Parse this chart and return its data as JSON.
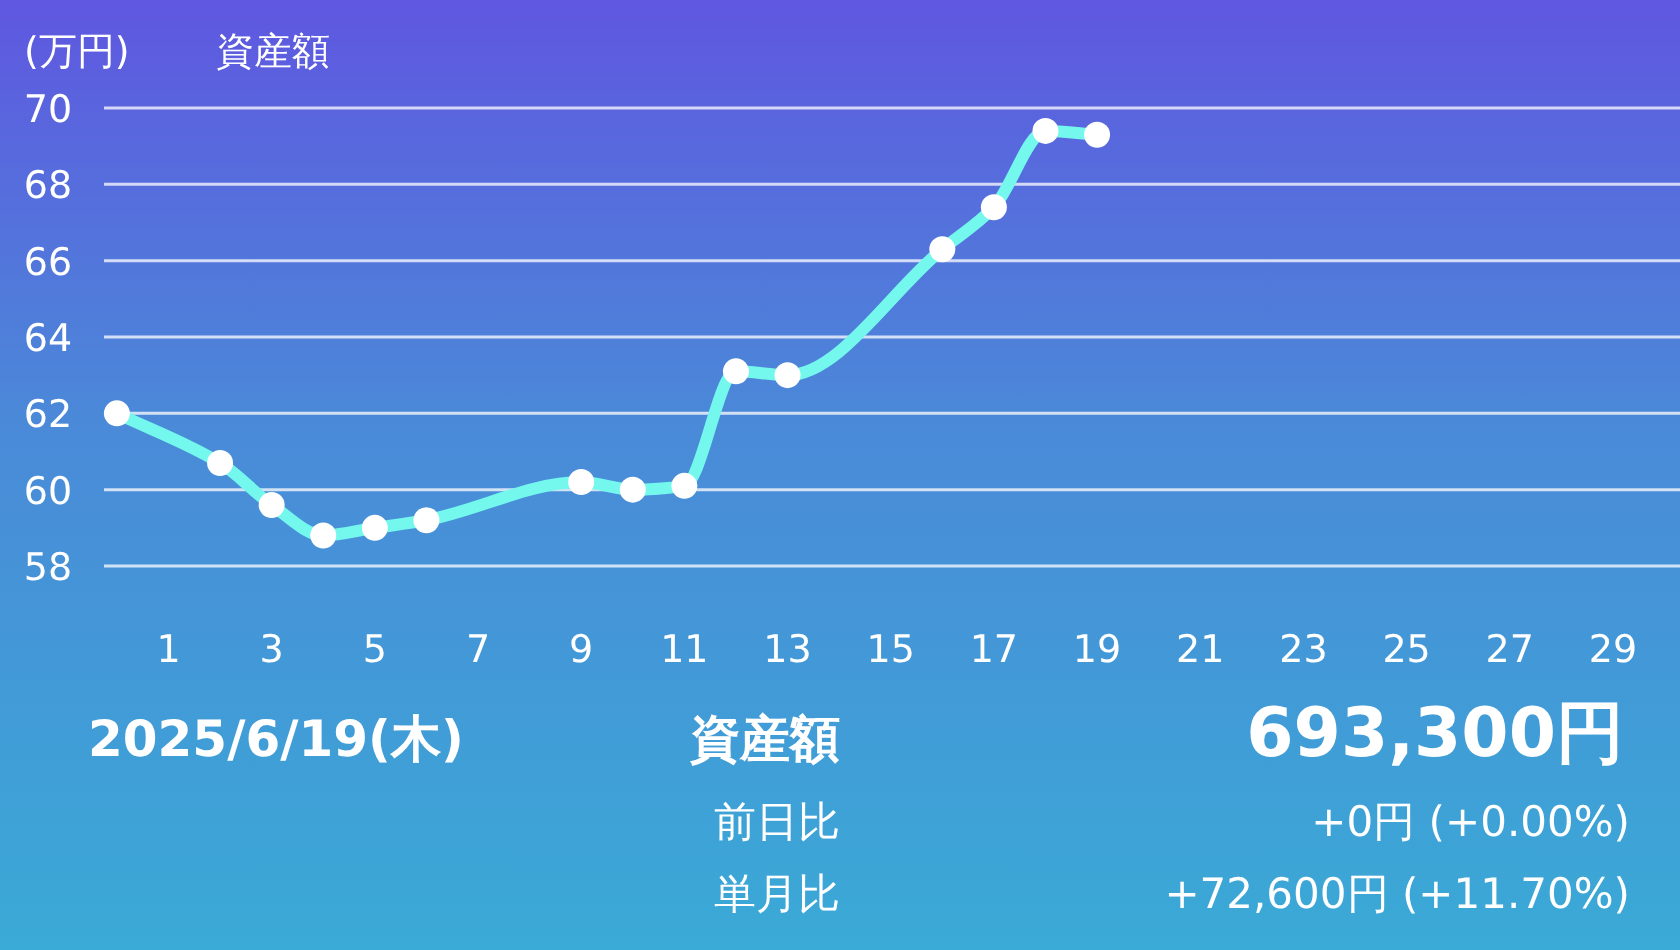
{
  "chart_data": {
    "type": "line",
    "title": "資産額",
    "ylabel": "(万円)",
    "x": [
      0,
      2,
      3,
      4,
      5,
      6,
      9,
      10,
      11,
      12,
      13,
      16,
      17,
      18,
      19
    ],
    "series": [
      {
        "color": "#74f7ec",
        "values": [
          62.0,
          60.7,
          59.6,
          58.8,
          59.0,
          59.2,
          60.2,
          60.0,
          60.1,
          63.1,
          63.0,
          66.3,
          67.4,
          69.4,
          69.3
        ]
      }
    ],
    "xlim": [
      -0.25,
      30.3
    ],
    "ylim": [
      58,
      70
    ],
    "xticks": [
      1,
      3,
      5,
      7,
      9,
      11,
      13,
      15,
      17,
      19,
      21,
      23,
      25,
      27,
      29
    ],
    "yticks": [
      58,
      60,
      62,
      64,
      66,
      68,
      70
    ],
    "grid": "y",
    "marker": "circle",
    "line_style": "solid",
    "annotations": [
      "2025/6/19(木)",
      "資産額",
      "693,300円",
      "前日比",
      "+0円 (+0.00%)",
      "単月比",
      "+72,600円 (+11.70%)"
    ]
  }
}
